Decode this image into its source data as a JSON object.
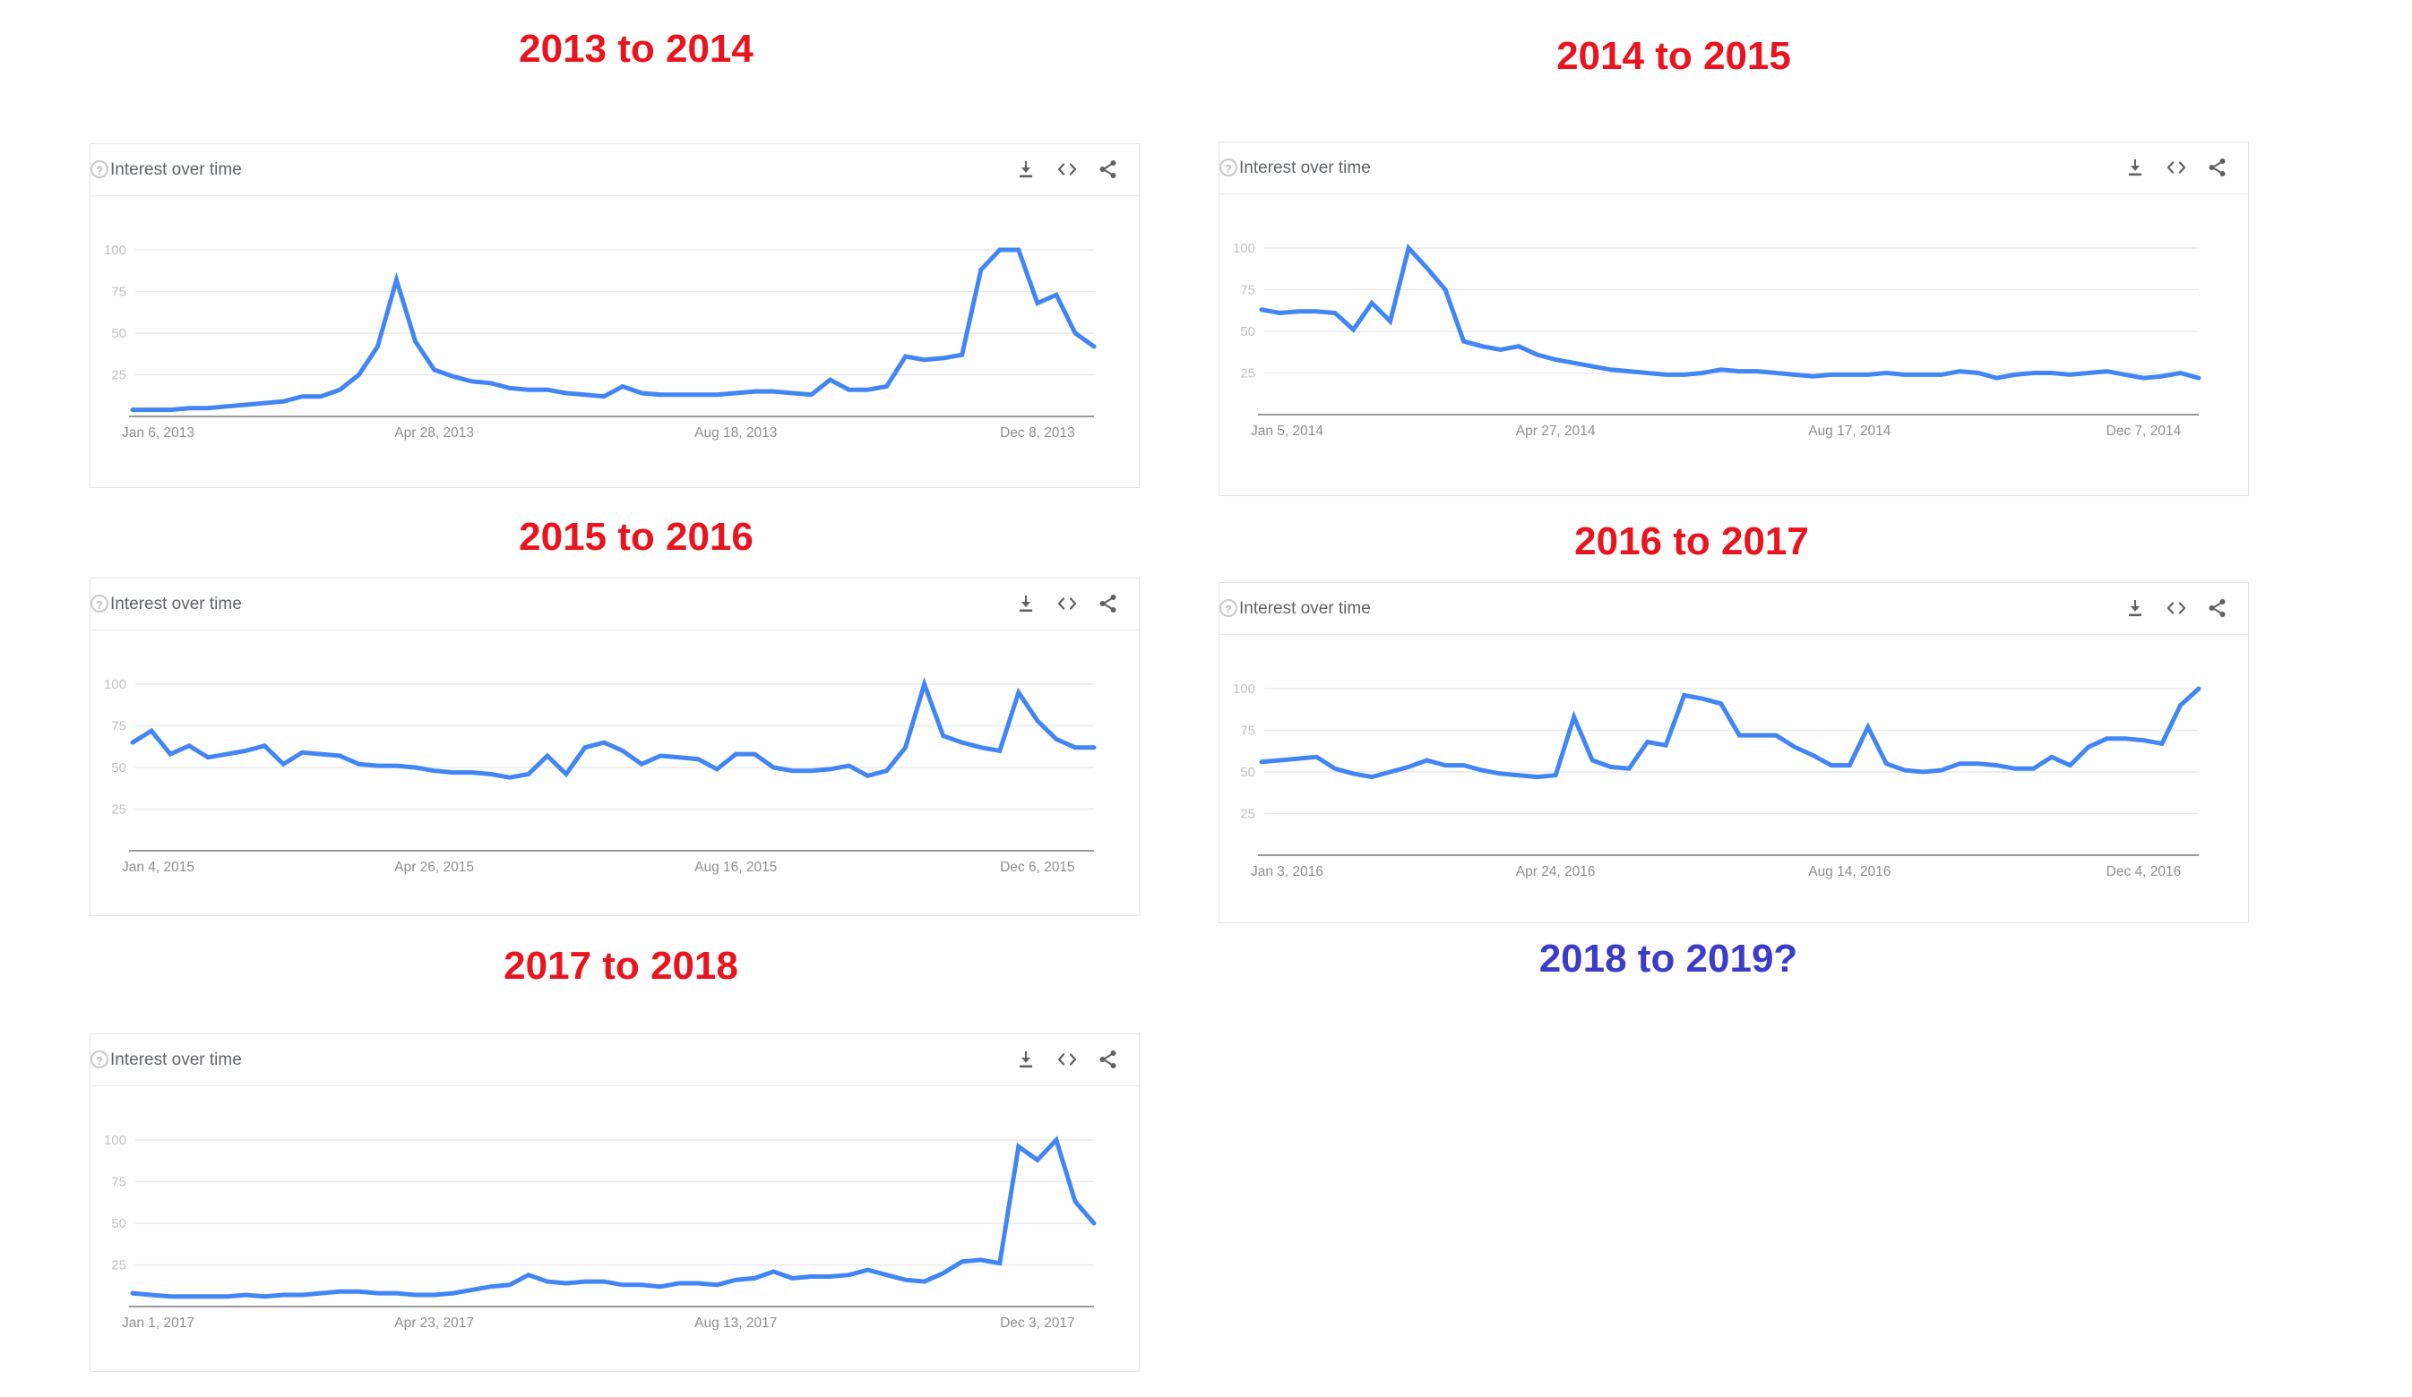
{
  "titles": [
    {
      "text": "2013 to 2014",
      "color": "#e8141e"
    },
    {
      "text": "2014 to 2015",
      "color": "#e8141e"
    },
    {
      "text": "2015 to 2016",
      "color": "#e8141e"
    },
    {
      "text": "2016 to 2017",
      "color": "#e8141e"
    },
    {
      "text": "2017 to 2018",
      "color": "#e8141e"
    },
    {
      "text": "2018 to 2019?",
      "color": "#3c3cc8"
    }
  ],
  "widget": {
    "header": "Interest over time",
    "help_glyph": "?",
    "icons": [
      "help-icon",
      "download-icon",
      "embed-icon",
      "share-icon"
    ]
  },
  "colors": {
    "line": "#4285f4",
    "grid": "#e9e9e9",
    "axis": "#9a9a9a",
    "y_tick_label": "#c2c2c2",
    "x_tick_label": "#8f8f8f",
    "header_text": "#5f6368",
    "icon": "#616161"
  },
  "chart_data": [
    {
      "type": "line",
      "title": "Interest over time",
      "period_label": "2013 to 2014",
      "ylim": [
        0,
        100
      ],
      "y_ticks": [
        100,
        75,
        50,
        25
      ],
      "x_tick_labels": [
        "Jan 6, 2013",
        "Apr 28, 2013",
        "Aug 18, 2013",
        "Dec 8, 2013"
      ],
      "x_tick_week_index": [
        0,
        16,
        32,
        48
      ],
      "weeks_total": 52,
      "values": [
        4,
        4,
        4,
        5,
        5,
        6,
        7,
        8,
        9,
        12,
        12,
        16,
        25,
        42,
        82,
        45,
        28,
        24,
        21,
        20,
        17,
        16,
        16,
        14,
        13,
        12,
        18,
        14,
        13,
        13,
        13,
        13,
        14,
        15,
        15,
        14,
        13,
        22,
        16,
        16,
        18,
        36,
        34,
        35,
        37,
        88,
        100,
        100,
        68,
        73,
        50,
        42
      ]
    },
    {
      "type": "line",
      "title": "Interest over time",
      "period_label": "2014 to 2015",
      "ylim": [
        0,
        100
      ],
      "y_ticks": [
        100,
        75,
        50,
        25
      ],
      "x_tick_labels": [
        "Jan 5, 2014",
        "Apr 27, 2014",
        "Aug 17, 2014",
        "Dec 7, 2014"
      ],
      "x_tick_week_index": [
        0,
        16,
        32,
        48
      ],
      "weeks_total": 52,
      "values": [
        63,
        61,
        62,
        62,
        61,
        51,
        67,
        56,
        100,
        88,
        75,
        44,
        41,
        39,
        41,
        36,
        33,
        31,
        29,
        27,
        26,
        25,
        24,
        24,
        25,
        27,
        26,
        26,
        25,
        24,
        23,
        24,
        24,
        24,
        25,
        24,
        24,
        24,
        26,
        25,
        22,
        24,
        25,
        25,
        24,
        25,
        26,
        24,
        22,
        23,
        25,
        22
      ]
    },
    {
      "type": "line",
      "title": "Interest over time",
      "period_label": "2015 to 2016",
      "ylim": [
        0,
        100
      ],
      "y_ticks": [
        100,
        75,
        50,
        25
      ],
      "x_tick_labels": [
        "Jan 4, 2015",
        "Apr 26, 2015",
        "Aug 16, 2015",
        "Dec 6, 2015"
      ],
      "x_tick_week_index": [
        0,
        16,
        32,
        48
      ],
      "weeks_total": 52,
      "values": [
        65,
        72,
        58,
        63,
        56,
        58,
        60,
        63,
        52,
        59,
        58,
        57,
        52,
        51,
        51,
        50,
        48,
        47,
        47,
        46,
        44,
        46,
        57,
        46,
        62,
        65,
        60,
        52,
        57,
        56,
        55,
        49,
        58,
        58,
        50,
        48,
        48,
        49,
        51,
        45,
        48,
        62,
        100,
        69,
        65,
        62,
        60,
        95,
        78,
        67,
        62,
        62
      ]
    },
    {
      "type": "line",
      "title": "Interest over time",
      "period_label": "2016 to 2017",
      "ylim": [
        0,
        100
      ],
      "y_ticks": [
        100,
        75,
        50,
        25
      ],
      "x_tick_labels": [
        "Jan 3, 2016",
        "Apr 24, 2016",
        "Aug 14, 2016",
        "Dec 4, 2016"
      ],
      "x_tick_week_index": [
        0,
        16,
        32,
        48
      ],
      "weeks_total": 52,
      "values": [
        56,
        57,
        58,
        59,
        52,
        49,
        47,
        50,
        53,
        57,
        54,
        54,
        51,
        49,
        48,
        47,
        48,
        83,
        57,
        53,
        52,
        68,
        66,
        96,
        94,
        91,
        72,
        72,
        72,
        65,
        60,
        54,
        54,
        77,
        55,
        51,
        50,
        51,
        55,
        55,
        54,
        52,
        52,
        59,
        54,
        65,
        70,
        70,
        69,
        67,
        90,
        100
      ]
    },
    {
      "type": "line",
      "title": "Interest over time",
      "period_label": "2017 to 2018",
      "ylim": [
        0,
        100
      ],
      "y_ticks": [
        100,
        75,
        50,
        25
      ],
      "x_tick_labels": [
        "Jan 1, 2017",
        "Apr 23, 2017",
        "Aug 13, 2017",
        "Dec 3, 2017"
      ],
      "x_tick_week_index": [
        0,
        16,
        32,
        48
      ],
      "weeks_total": 52,
      "values": [
        8,
        7,
        6,
        6,
        6,
        6,
        7,
        6,
        7,
        7,
        8,
        9,
        9,
        8,
        8,
        7,
        7,
        8,
        10,
        12,
        13,
        19,
        15,
        14,
        15,
        15,
        13,
        13,
        12,
        14,
        14,
        13,
        16,
        17,
        21,
        17,
        18,
        18,
        19,
        22,
        19,
        16,
        15,
        20,
        27,
        28,
        26,
        96,
        88,
        100,
        63,
        50
      ]
    }
  ]
}
